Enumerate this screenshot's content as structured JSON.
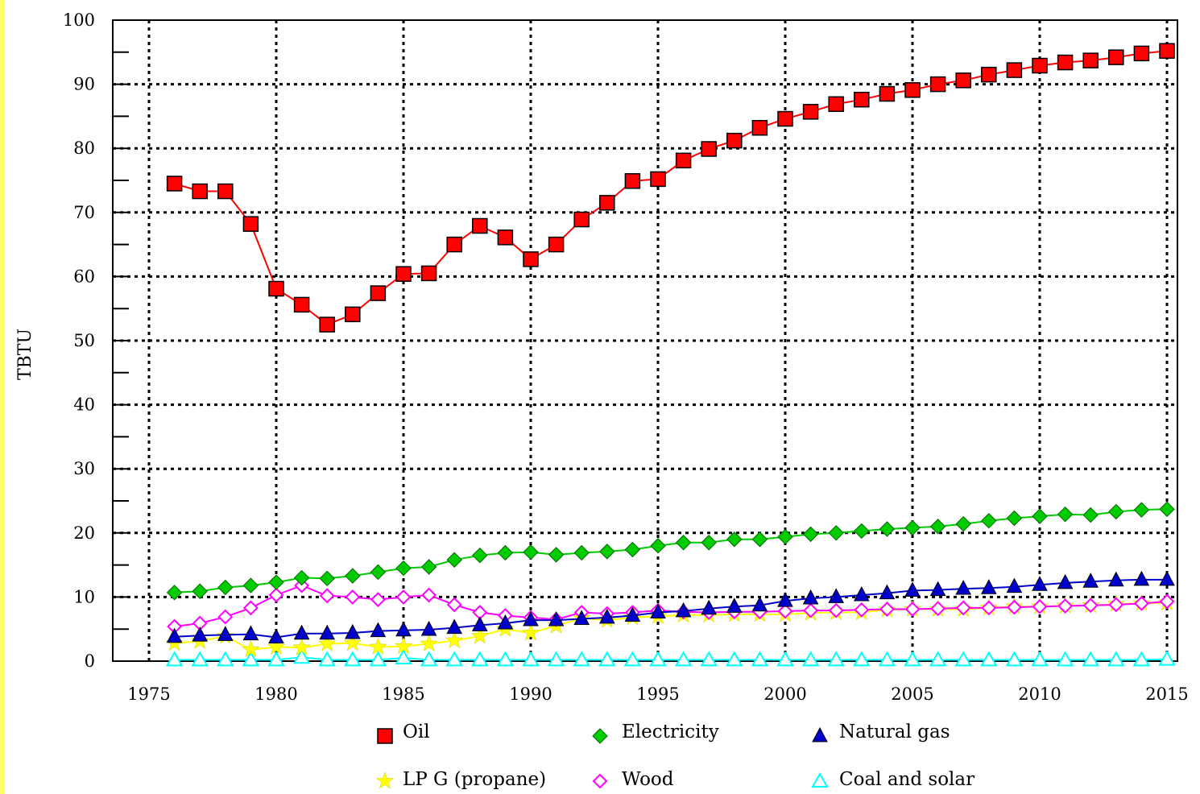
{
  "chart_data": {
    "type": "line",
    "ylabel": "TBTU",
    "xlabel": "",
    "title": "",
    "xlim": [
      1975,
      2015
    ],
    "ylim": [
      0,
      100
    ],
    "x_ticks": [
      1975,
      1980,
      1985,
      1990,
      1995,
      2000,
      2005,
      2010,
      2015
    ],
    "y_ticks": [
      0,
      10,
      20,
      30,
      40,
      50,
      60,
      70,
      80,
      90,
      100
    ],
    "grid": true,
    "legend_position": "bottom",
    "x": [
      1976,
      1977,
      1978,
      1979,
      1980,
      1981,
      1982,
      1983,
      1984,
      1985,
      1986,
      1987,
      1988,
      1989,
      1990,
      1991,
      1992,
      1993,
      1994,
      1995,
      1996,
      1997,
      1998,
      1999,
      2000,
      2001,
      2002,
      2003,
      2004,
      2005,
      2006,
      2007,
      2008,
      2009,
      2010,
      2011,
      2012,
      2013,
      2014,
      2015
    ],
    "series": [
      {
        "name": "Oil",
        "color": "#ff0000",
        "marker": "square",
        "values": [
          74.5,
          73.3,
          73.3,
          68.2,
          58.1,
          55.6,
          52.5,
          54.1,
          57.4,
          60.4,
          60.5,
          65.0,
          67.9,
          66.1,
          62.7,
          65.0,
          68.9,
          71.5,
          74.9,
          75.2,
          78.1,
          79.9,
          81.2,
          83.2,
          84.6,
          85.7,
          86.9,
          87.6,
          88.5,
          89.1,
          90.0,
          90.6,
          91.5,
          92.2,
          92.9,
          93.4,
          93.7,
          94.2,
          94.8,
          95.2
        ]
      },
      {
        "name": "Electricity",
        "color": "#00cc00",
        "marker": "diamond",
        "values": [
          10.7,
          10.9,
          11.5,
          11.8,
          12.3,
          13.0,
          12.9,
          13.3,
          13.9,
          14.5,
          14.7,
          15.8,
          16.5,
          16.9,
          17.0,
          16.6,
          16.9,
          17.1,
          17.4,
          18.0,
          18.5,
          18.5,
          19.0,
          19.0,
          19.4,
          19.8,
          20.0,
          20.3,
          20.6,
          20.8,
          21.0,
          21.4,
          21.9,
          22.3,
          22.6,
          22.9,
          22.8,
          23.3,
          23.6,
          23.7
        ]
      },
      {
        "name": "Natural gas",
        "color": "#0000cc",
        "marker": "triangle",
        "values": [
          3.8,
          4.0,
          4.1,
          4.2,
          3.7,
          4.3,
          4.3,
          4.4,
          4.7,
          4.8,
          4.9,
          5.2,
          5.6,
          5.9,
          6.4,
          6.4,
          6.6,
          6.8,
          7.1,
          7.6,
          7.8,
          8.2,
          8.5,
          8.7,
          9.4,
          9.8,
          10.0,
          10.3,
          10.6,
          11.0,
          11.1,
          11.3,
          11.4,
          11.6,
          11.9,
          12.2,
          12.4,
          12.6,
          12.7,
          12.7
        ]
      },
      {
        "name": "LPG (propane)",
        "color": "#ffff00",
        "marker": "star",
        "values": [
          2.8,
          3.1,
          3.9,
          1.8,
          2.2,
          2.1,
          2.7,
          2.8,
          2.2,
          2.3,
          2.7,
          3.2,
          3.9,
          5.0,
          4.4,
          5.5,
          6.7,
          6.4,
          6.8,
          7.0,
          7.2,
          7.2,
          7.3,
          7.3,
          7.3,
          7.5,
          7.6,
          7.6,
          8.0,
          8.1,
          8.1,
          8.1,
          8.3,
          8.5,
          8.5,
          8.6,
          8.7,
          8.9,
          9.0,
          9.1
        ]
      },
      {
        "name": "Wood",
        "color": "#ff00ff",
        "marker": "diamond-open",
        "values": [
          5.4,
          5.9,
          6.9,
          8.3,
          10.3,
          11.8,
          10.2,
          10.0,
          9.6,
          10.0,
          10.3,
          8.8,
          7.6,
          7.1,
          6.8,
          6.5,
          7.6,
          7.4,
          7.6,
          7.9,
          7.7,
          7.6,
          7.7,
          7.7,
          7.8,
          7.9,
          7.9,
          8.0,
          8.1,
          8.1,
          8.2,
          8.3,
          8.3,
          8.4,
          8.5,
          8.6,
          8.7,
          8.8,
          9.0,
          9.3
        ]
      },
      {
        "name": "Coal and solar",
        "color": "#00ffff",
        "marker": "triangle-open",
        "values": [
          0.2,
          0.2,
          0.2,
          0.2,
          0.2,
          0.6,
          0.2,
          0.2,
          0.2,
          0.5,
          0.2,
          0.2,
          0.2,
          0.2,
          0.2,
          0.2,
          0.2,
          0.2,
          0.2,
          0.2,
          0.2,
          0.2,
          0.2,
          0.2,
          0.2,
          0.2,
          0.2,
          0.2,
          0.2,
          0.2,
          0.2,
          0.2,
          0.2,
          0.2,
          0.2,
          0.2,
          0.2,
          0.2,
          0.2,
          0.3
        ]
      }
    ],
    "legend": [
      {
        "label": "Oil",
        "series": 0
      },
      {
        "label": "Electricity",
        "series": 1
      },
      {
        "label": "Natural gas",
        "series": 2
      },
      {
        "label": "LP G (propane)",
        "series": 3
      },
      {
        "label": "Wood",
        "series": 4
      },
      {
        "label": "Coal and solar",
        "series": 5
      }
    ]
  }
}
